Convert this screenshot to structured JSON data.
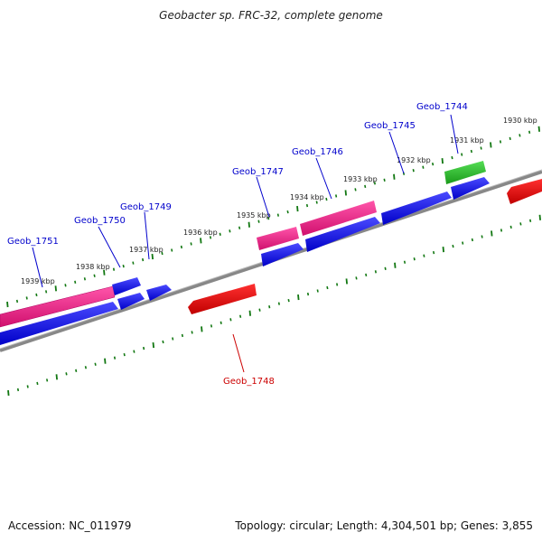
{
  "title": "Geobacter sp. FRC-32, complete genome",
  "footer": {
    "accession": "Accession: NC_011979",
    "summary": "Topology: circular; Length: 4,304,501 bp; Genes: 3,855"
  },
  "colors": {
    "forward_cds": "#0000ee",
    "forward_pink": "#ff2090",
    "green_gene": "#22bb22",
    "reverse_cds": "#ee0000",
    "backbone": "#888888",
    "ticks": "#117711",
    "label_blue": "#0000cc",
    "label_red": "#cc0000"
  },
  "kbp_labels": [
    "1930 kbp",
    "1931 kbp",
    "1932 kbp",
    "1933 kbp",
    "1934 kbp",
    "1935 kbp",
    "1936 kbp",
    "1937 kbp",
    "1938 kbp",
    "1939 kbp"
  ],
  "gene_labels": [
    {
      "name": "Geob_1744",
      "strand": "forward"
    },
    {
      "name": "Geob_1745",
      "strand": "forward"
    },
    {
      "name": "Geob_1746",
      "strand": "forward"
    },
    {
      "name": "Geob_1747",
      "strand": "forward"
    },
    {
      "name": "Geob_1749",
      "strand": "forward"
    },
    {
      "name": "Geob_1750",
      "strand": "forward"
    },
    {
      "name": "Geob_1751",
      "strand": "forward"
    },
    {
      "name": "Geob_1748",
      "strand": "reverse"
    }
  ]
}
